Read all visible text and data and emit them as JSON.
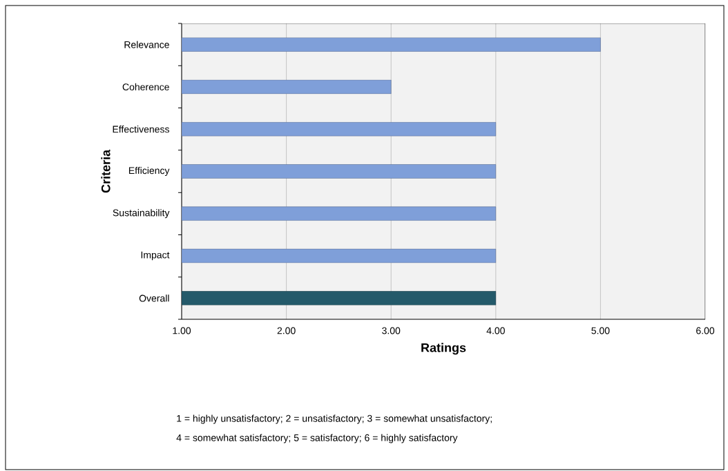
{
  "chart_data": {
    "type": "bar",
    "orientation": "horizontal",
    "categories": [
      "Relevance",
      "Coherence",
      "Effectiveness",
      "Efficiency",
      "Sustainability",
      "Impact",
      "Overall"
    ],
    "values": [
      5,
      3,
      4,
      4,
      4,
      4,
      4
    ],
    "colors": [
      "#7f9fd9",
      "#7f9fd9",
      "#7f9fd9",
      "#7f9fd9",
      "#7f9fd9",
      "#7f9fd9",
      "#245a6a"
    ],
    "xlim": [
      1,
      6
    ],
    "xticks": [
      {
        "value": 1,
        "label": "1.00"
      },
      {
        "value": 2,
        "label": "2.00"
      },
      {
        "value": 3,
        "label": "3.00"
      },
      {
        "value": 4,
        "label": "4.00"
      },
      {
        "value": 5,
        "label": "5.00"
      },
      {
        "value": 6,
        "label": "6.00"
      }
    ],
    "xlabel": "Ratings",
    "ylabel": "Criteria",
    "grid": "x",
    "annotations": [
      "1 = highly unsatisfactory; 2 = unsatisfactory; 3 = somewhat unsatisfactory;",
      "4 = somewhat satisfactory; 5 = satisfactory;  6 = highly satisfactory"
    ]
  }
}
